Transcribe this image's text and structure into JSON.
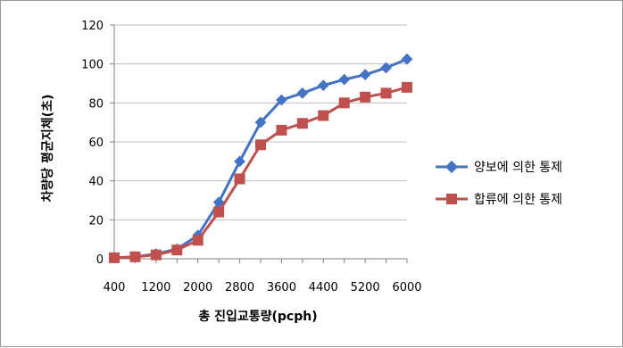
{
  "chart_data": {
    "type": "line",
    "title": "",
    "xlabel": "총 진입교통량(pcph)",
    "ylabel": "차량당 평균지체(초)",
    "ylim": [
      0,
      120
    ],
    "yticks": [
      0,
      20,
      40,
      60,
      80,
      100,
      120
    ],
    "x": [
      400,
      800,
      1200,
      1600,
      2000,
      2400,
      2800,
      3200,
      3600,
      4000,
      4400,
      4800,
      5200,
      5600,
      6000
    ],
    "xtick_labels": [
      "400",
      "1200",
      "2000",
      "2800",
      "3600",
      "4400",
      "5200",
      "6000"
    ],
    "grid": true,
    "legend_position": "right",
    "series": [
      {
        "name": "양보에 의한 통제",
        "color": "#4472c4",
        "marker": "diamond",
        "values": [
          0.5,
          1,
          2.5,
          5,
          12,
          29,
          50,
          70,
          81.5,
          85,
          89,
          92,
          94.5,
          98,
          102.5
        ]
      },
      {
        "name": "합류에 의한 통제",
        "color": "#c0504d",
        "marker": "square",
        "values": [
          0.5,
          1,
          2,
          4.5,
          9.5,
          24,
          41,
          58.5,
          66,
          69.5,
          73.5,
          80,
          83,
          85,
          88
        ]
      }
    ]
  }
}
